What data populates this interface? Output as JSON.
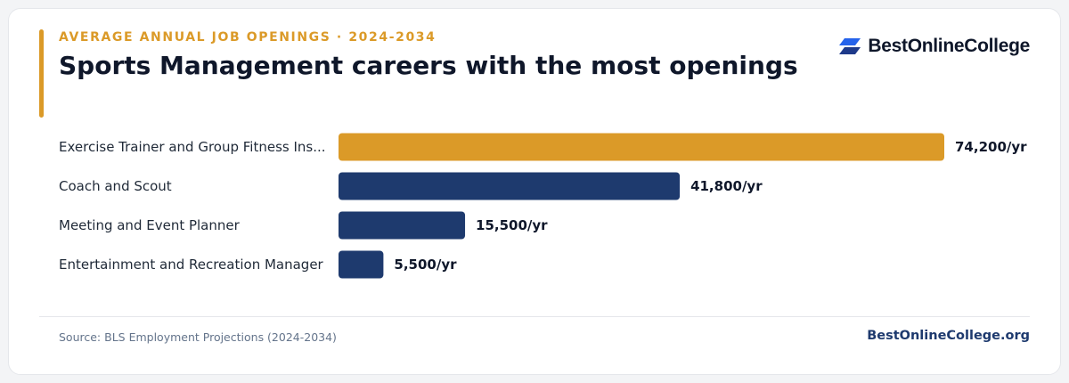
{
  "header": {
    "eyebrow": "AVERAGE ANNUAL JOB OPENINGS · 2024-2034",
    "title": "Sports Management careers with the most openings"
  },
  "brand": {
    "logo_text": "BestOnlineCollege",
    "logo_icon": "stacked-parallelogram-icon",
    "site": "BestOnlineCollege.org"
  },
  "footer": {
    "source": "Source: BLS Employment Projections (2024-2034)"
  },
  "colors": {
    "accent": "#db9a28",
    "bar_primary": "#1e3a6e",
    "bar_highlight": "#db9a28",
    "logo_blue": "#2563eb",
    "logo_dark": "#1e3a8a"
  },
  "chart_data": {
    "type": "bar",
    "orientation": "horizontal",
    "categories": [
      "Exercise Trainer and Group Fitness Ins...",
      "Coach and Scout",
      "Meeting and Event Planner",
      "Entertainment and Recreation Manager"
    ],
    "values": [
      74200,
      41800,
      15500,
      5500
    ],
    "value_labels": [
      "74,200/yr",
      "41,800/yr",
      "15,500/yr",
      "5,500/yr"
    ],
    "highlight_index": 0,
    "xlim": [
      0,
      74200
    ],
    "grid": false
  }
}
